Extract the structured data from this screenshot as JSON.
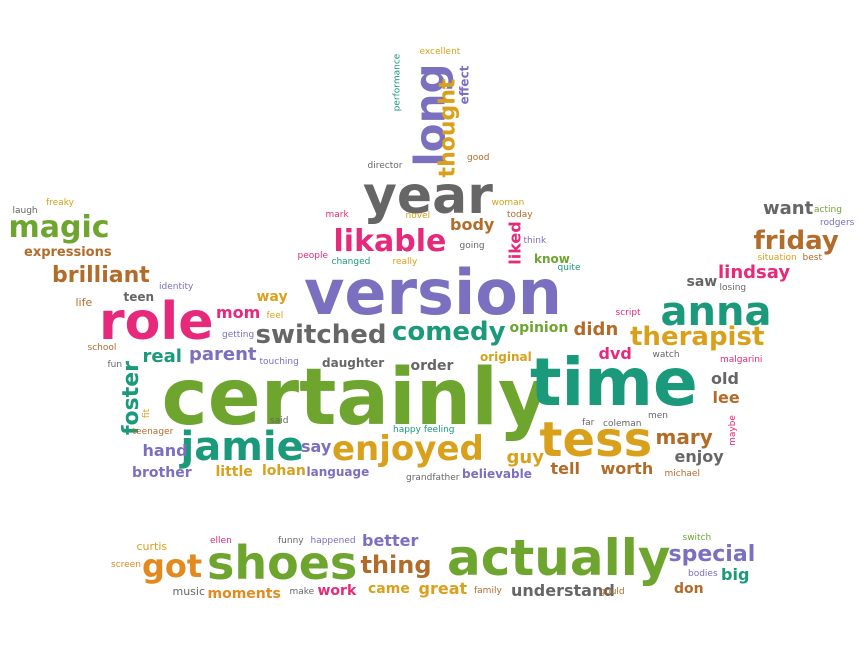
{
  "colors": {
    "green": "#6ea52e",
    "purple": "#7b6fbf",
    "teal": "#1a9a7a",
    "pink": "#e6297a",
    "orange": "#e38a1f",
    "gold": "#d9a11b",
    "gray": "#666666",
    "brown": "#b36b2a"
  },
  "words": [
    {
      "text": "certainly",
      "color": "green",
      "size": 78
    },
    {
      "text": "time",
      "color": "teal",
      "size": 66
    },
    {
      "text": "version",
      "color": "purple",
      "size": 62
    },
    {
      "text": "year",
      "color": "gray",
      "size": 52
    },
    {
      "text": "role",
      "color": "pink",
      "size": 52
    },
    {
      "text": "anna",
      "color": "teal",
      "size": 40
    },
    {
      "text": "tess",
      "color": "gold",
      "size": 48
    },
    {
      "text": "jamie",
      "color": "teal",
      "size": 40
    },
    {
      "text": "enjoyed",
      "color": "gold",
      "size": 34
    },
    {
      "text": "actually",
      "color": "green",
      "size": 50
    },
    {
      "text": "shoes",
      "color": "green",
      "size": 46
    },
    {
      "text": "long",
      "color": "purple",
      "size": 42
    },
    {
      "text": "likable",
      "color": "pink",
      "size": 30
    },
    {
      "text": "switched",
      "color": "gray",
      "size": 26
    },
    {
      "text": "comedy",
      "color": "teal",
      "size": 26
    },
    {
      "text": "therapist",
      "color": "gold",
      "size": 26
    },
    {
      "text": "friday",
      "color": "brown",
      "size": 26
    },
    {
      "text": "magic",
      "color": "green",
      "size": 30
    },
    {
      "text": "brilliant",
      "color": "brown",
      "size": 22
    },
    {
      "text": "got",
      "color": "orange",
      "size": 32
    },
    {
      "text": "thing",
      "color": "brown",
      "size": 24
    },
    {
      "text": "special",
      "color": "purple",
      "size": 22
    },
    {
      "text": "thought",
      "color": "gold",
      "size": 22
    },
    {
      "text": "foster",
      "color": "teal",
      "size": 22
    },
    {
      "text": "mary",
      "color": "brown",
      "size": 20
    },
    {
      "text": "lindsay",
      "color": "pink",
      "size": 18
    },
    {
      "text": "want",
      "color": "gray",
      "size": 18
    },
    {
      "text": "parent",
      "color": "purple",
      "size": 18
    },
    {
      "text": "real",
      "color": "teal",
      "size": 18
    },
    {
      "text": "mom",
      "color": "pink",
      "size": 16
    },
    {
      "text": "hand",
      "color": "purple",
      "size": 16
    },
    {
      "text": "say",
      "color": "purple",
      "size": 16
    },
    {
      "text": "guy",
      "color": "gold",
      "size": 18
    },
    {
      "text": "tell",
      "color": "brown",
      "size": 16
    },
    {
      "text": "worth",
      "color": "brown",
      "size": 16
    },
    {
      "text": "enjoy",
      "color": "gray",
      "size": 16
    },
    {
      "text": "old",
      "color": "gray",
      "size": 16
    },
    {
      "text": "lee",
      "color": "brown",
      "size": 16
    },
    {
      "text": "saw",
      "color": "gray",
      "size": 14
    },
    {
      "text": "dvd",
      "color": "pink",
      "size": 16
    },
    {
      "text": "didn",
      "color": "brown",
      "size": 18
    },
    {
      "text": "opinion",
      "color": "green",
      "size": 14
    },
    {
      "text": "order",
      "color": "gray",
      "size": 14
    },
    {
      "text": "daughter",
      "color": "gray",
      "size": 12
    },
    {
      "text": "original",
      "color": "gold",
      "size": 12
    },
    {
      "text": "body",
      "color": "brown",
      "size": 16
    },
    {
      "text": "liked",
      "color": "pink",
      "size": 16
    },
    {
      "text": "know",
      "color": "green",
      "size": 12
    },
    {
      "text": "way",
      "color": "gold",
      "size": 14
    },
    {
      "text": "teen",
      "color": "gray",
      "size": 12
    },
    {
      "text": "life",
      "color": "brown",
      "size": 11
    },
    {
      "text": "expressions",
      "color": "brown",
      "size": 13
    },
    {
      "text": "little",
      "color": "gold",
      "size": 14
    },
    {
      "text": "lohan",
      "color": "gold",
      "size": 14
    },
    {
      "text": "language",
      "color": "purple",
      "size": 12
    },
    {
      "text": "brother",
      "color": "purple",
      "size": 14
    },
    {
      "text": "believable",
      "color": "purple",
      "size": 12
    },
    {
      "text": "better",
      "color": "purple",
      "size": 16
    },
    {
      "text": "moments",
      "color": "orange",
      "size": 14
    },
    {
      "text": "work",
      "color": "pink",
      "size": 14
    },
    {
      "text": "came",
      "color": "gold",
      "size": 14
    },
    {
      "text": "great",
      "color": "gold",
      "size": 16
    },
    {
      "text": "understand",
      "color": "gray",
      "size": 16
    },
    {
      "text": "don",
      "color": "brown",
      "size": 14
    },
    {
      "text": "big",
      "color": "teal",
      "size": 16
    },
    {
      "text": "music",
      "color": "gray",
      "size": 11
    },
    {
      "text": "curtis",
      "color": "gold",
      "size": 11
    },
    {
      "text": "screen",
      "color": "orange",
      "size": 9
    },
    {
      "text": "ellen",
      "color": "pink",
      "size": 9
    },
    {
      "text": "funny",
      "color": "gray",
      "size": 9
    },
    {
      "text": "happened",
      "color": "purple",
      "size": 9
    },
    {
      "text": "make",
      "color": "gray",
      "size": 9
    },
    {
      "text": "family",
      "color": "brown",
      "size": 9
    },
    {
      "text": "gould",
      "color": "brown",
      "size": 9
    },
    {
      "text": "bodies",
      "color": "purple",
      "size": 9
    },
    {
      "text": "switch",
      "color": "green",
      "size": 9
    },
    {
      "text": "performance",
      "color": "teal",
      "size": 9
    },
    {
      "text": "excellent",
      "color": "gold",
      "size": 9
    },
    {
      "text": "effect",
      "color": "purple",
      "size": 12
    },
    {
      "text": "director",
      "color": "gray",
      "size": 9
    },
    {
      "text": "good",
      "color": "brown",
      "size": 9
    },
    {
      "text": "woman",
      "color": "gold",
      "size": 9
    },
    {
      "text": "today",
      "color": "brown",
      "size": 9
    },
    {
      "text": "mark",
      "color": "pink",
      "size": 9
    },
    {
      "text": "novel",
      "color": "gold",
      "size": 9
    },
    {
      "text": "people",
      "color": "pink",
      "size": 9
    },
    {
      "text": "changed",
      "color": "teal",
      "size": 9
    },
    {
      "text": "going",
      "color": "gray",
      "size": 9
    },
    {
      "text": "really",
      "color": "gold",
      "size": 9
    },
    {
      "text": "think",
      "color": "purple",
      "size": 9
    },
    {
      "text": "quite",
      "color": "teal",
      "size": 9
    },
    {
      "text": "freaky",
      "color": "gold",
      "size": 9
    },
    {
      "text": "laugh",
      "color": "gray",
      "size": 9
    },
    {
      "text": "identity",
      "color": "purple",
      "size": 9
    },
    {
      "text": "getting",
      "color": "purple",
      "size": 9
    },
    {
      "text": "feel",
      "color": "gold",
      "size": 9
    },
    {
      "text": "school",
      "color": "brown",
      "size": 9
    },
    {
      "text": "fun",
      "color": "gray",
      "size": 9
    },
    {
      "text": "touching",
      "color": "purple",
      "size": 9
    },
    {
      "text": "fit",
      "color": "gold",
      "size": 9
    },
    {
      "text": "said",
      "color": "gray",
      "size": 9
    },
    {
      "text": "teenager",
      "color": "brown",
      "size": 9
    },
    {
      "text": "happy feeling",
      "color": "teal",
      "size": 9
    },
    {
      "text": "grandfather",
      "color": "gray",
      "size": 9
    },
    {
      "text": "far",
      "color": "gray",
      "size": 9
    },
    {
      "text": "coleman",
      "color": "gray",
      "size": 9
    },
    {
      "text": "script",
      "color": "pink",
      "size": 9
    },
    {
      "text": "watch",
      "color": "gray",
      "size": 9
    },
    {
      "text": "malgarini",
      "color": "pink",
      "size": 9
    },
    {
      "text": "men",
      "color": "gray",
      "size": 9
    },
    {
      "text": "maybe",
      "color": "pink",
      "size": 9
    },
    {
      "text": "michael",
      "color": "brown",
      "size": 9
    },
    {
      "text": "acting",
      "color": "green",
      "size": 9
    },
    {
      "text": "rodgers",
      "color": "purple",
      "size": 9
    },
    {
      "text": "situation",
      "color": "gold",
      "size": 9
    },
    {
      "text": "best",
      "color": "brown",
      "size": 9
    },
    {
      "text": "losing",
      "color": "gray",
      "size": 9
    }
  ]
}
